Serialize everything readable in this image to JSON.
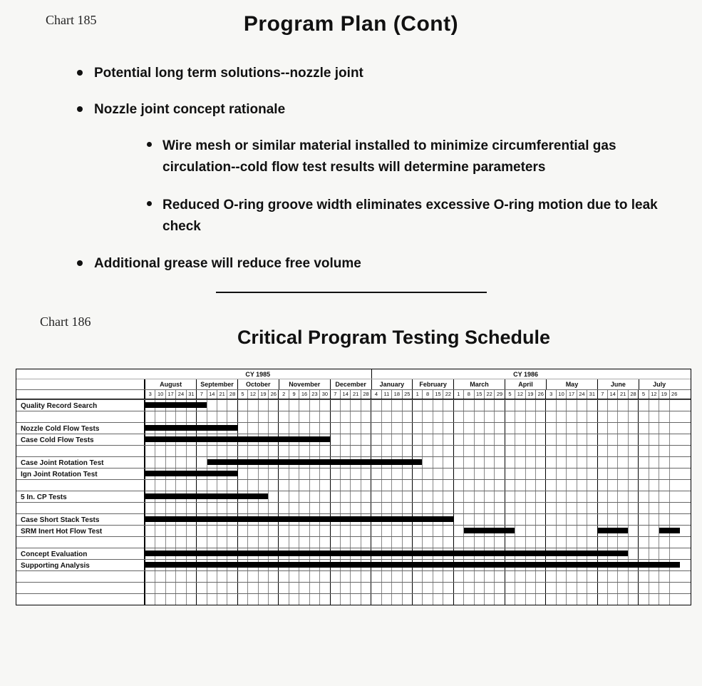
{
  "chart185": {
    "label": "Chart 185",
    "title": "Program Plan (Cont)",
    "bullets": [
      {
        "text": "Potential long term solutions--nozzle joint"
      },
      {
        "text": "Nozzle joint concept rationale",
        "sub": [
          "Wire mesh or similar material installed to minimize circumferential gas circulation--cold flow test results will determine parameters",
          "Reduced O-ring groove width eliminates excessive O-ring motion due to leak check"
        ]
      },
      {
        "text": "Additional grease will reduce free volume"
      }
    ]
  },
  "chart186": {
    "label": "Chart 186",
    "title": "Critical Program Testing Schedule",
    "years": [
      {
        "label": "CY 1985",
        "months": [
          "August",
          "September",
          "October",
          "November",
          "December"
        ]
      },
      {
        "label": "CY 1986",
        "months": [
          "January",
          "February",
          "March",
          "April",
          "May",
          "June",
          "July"
        ]
      }
    ],
    "months": [
      {
        "name": "August",
        "days": [
          3,
          10,
          17,
          24,
          31
        ]
      },
      {
        "name": "September",
        "days": [
          7,
          14,
          21,
          28
        ]
      },
      {
        "name": "October",
        "days": [
          5,
          12,
          19,
          26
        ]
      },
      {
        "name": "November",
        "days": [
          2,
          9,
          16,
          23,
          30
        ]
      },
      {
        "name": "December",
        "days": [
          7,
          14,
          21,
          28
        ]
      },
      {
        "name": "January",
        "days": [
          4,
          11,
          18,
          25
        ]
      },
      {
        "name": "February",
        "days": [
          1,
          8,
          15,
          22
        ]
      },
      {
        "name": "March",
        "days": [
          1,
          8,
          15,
          22,
          29
        ]
      },
      {
        "name": "April",
        "days": [
          5,
          12,
          19,
          26
        ]
      },
      {
        "name": "May",
        "days": [
          3,
          10,
          17,
          24,
          31
        ]
      },
      {
        "name": "June",
        "days": [
          7,
          14,
          21,
          28
        ]
      },
      {
        "name": "July",
        "days": [
          5,
          12,
          19,
          26
        ]
      }
    ],
    "totalWeeks": 53,
    "rows": [
      {
        "label": "Quality Record Search",
        "bars": [
          [
            0,
            6
          ]
        ]
      },
      {
        "label": ""
      },
      {
        "label": "Nozzle Cold Flow Tests",
        "bars": [
          [
            0,
            9
          ]
        ]
      },
      {
        "label": "Case Cold Flow Tests",
        "bars": [
          [
            0,
            18
          ]
        ]
      },
      {
        "label": ""
      },
      {
        "label": "Case Joint Rotation Test",
        "bars": [
          [
            6,
            27
          ]
        ]
      },
      {
        "label": "Ign Joint Rotation Test",
        "bars": [
          [
            0,
            9
          ]
        ]
      },
      {
        "label": ""
      },
      {
        "label": "5 In. CP Tests",
        "bars": [
          [
            0,
            12
          ]
        ]
      },
      {
        "label": ""
      },
      {
        "label": "Case Short Stack Tests",
        "bars": [
          [
            0,
            30
          ]
        ]
      },
      {
        "label": "SRM Inert Hot Flow Test",
        "bars": [
          [
            31,
            36
          ],
          [
            44,
            47
          ],
          [
            50,
            53
          ]
        ]
      },
      {
        "label": ""
      },
      {
        "label": "Concept Evaluation",
        "bars": [
          [
            0,
            47
          ]
        ]
      },
      {
        "label": "Supporting Analysis",
        "bars": [
          [
            0,
            53
          ]
        ]
      },
      {
        "label": ""
      },
      {
        "label": ""
      },
      {
        "label": ""
      }
    ],
    "colors": {
      "bar": "#000000",
      "grid": "#888888",
      "border": "#000000",
      "bg": "#ffffff"
    }
  }
}
